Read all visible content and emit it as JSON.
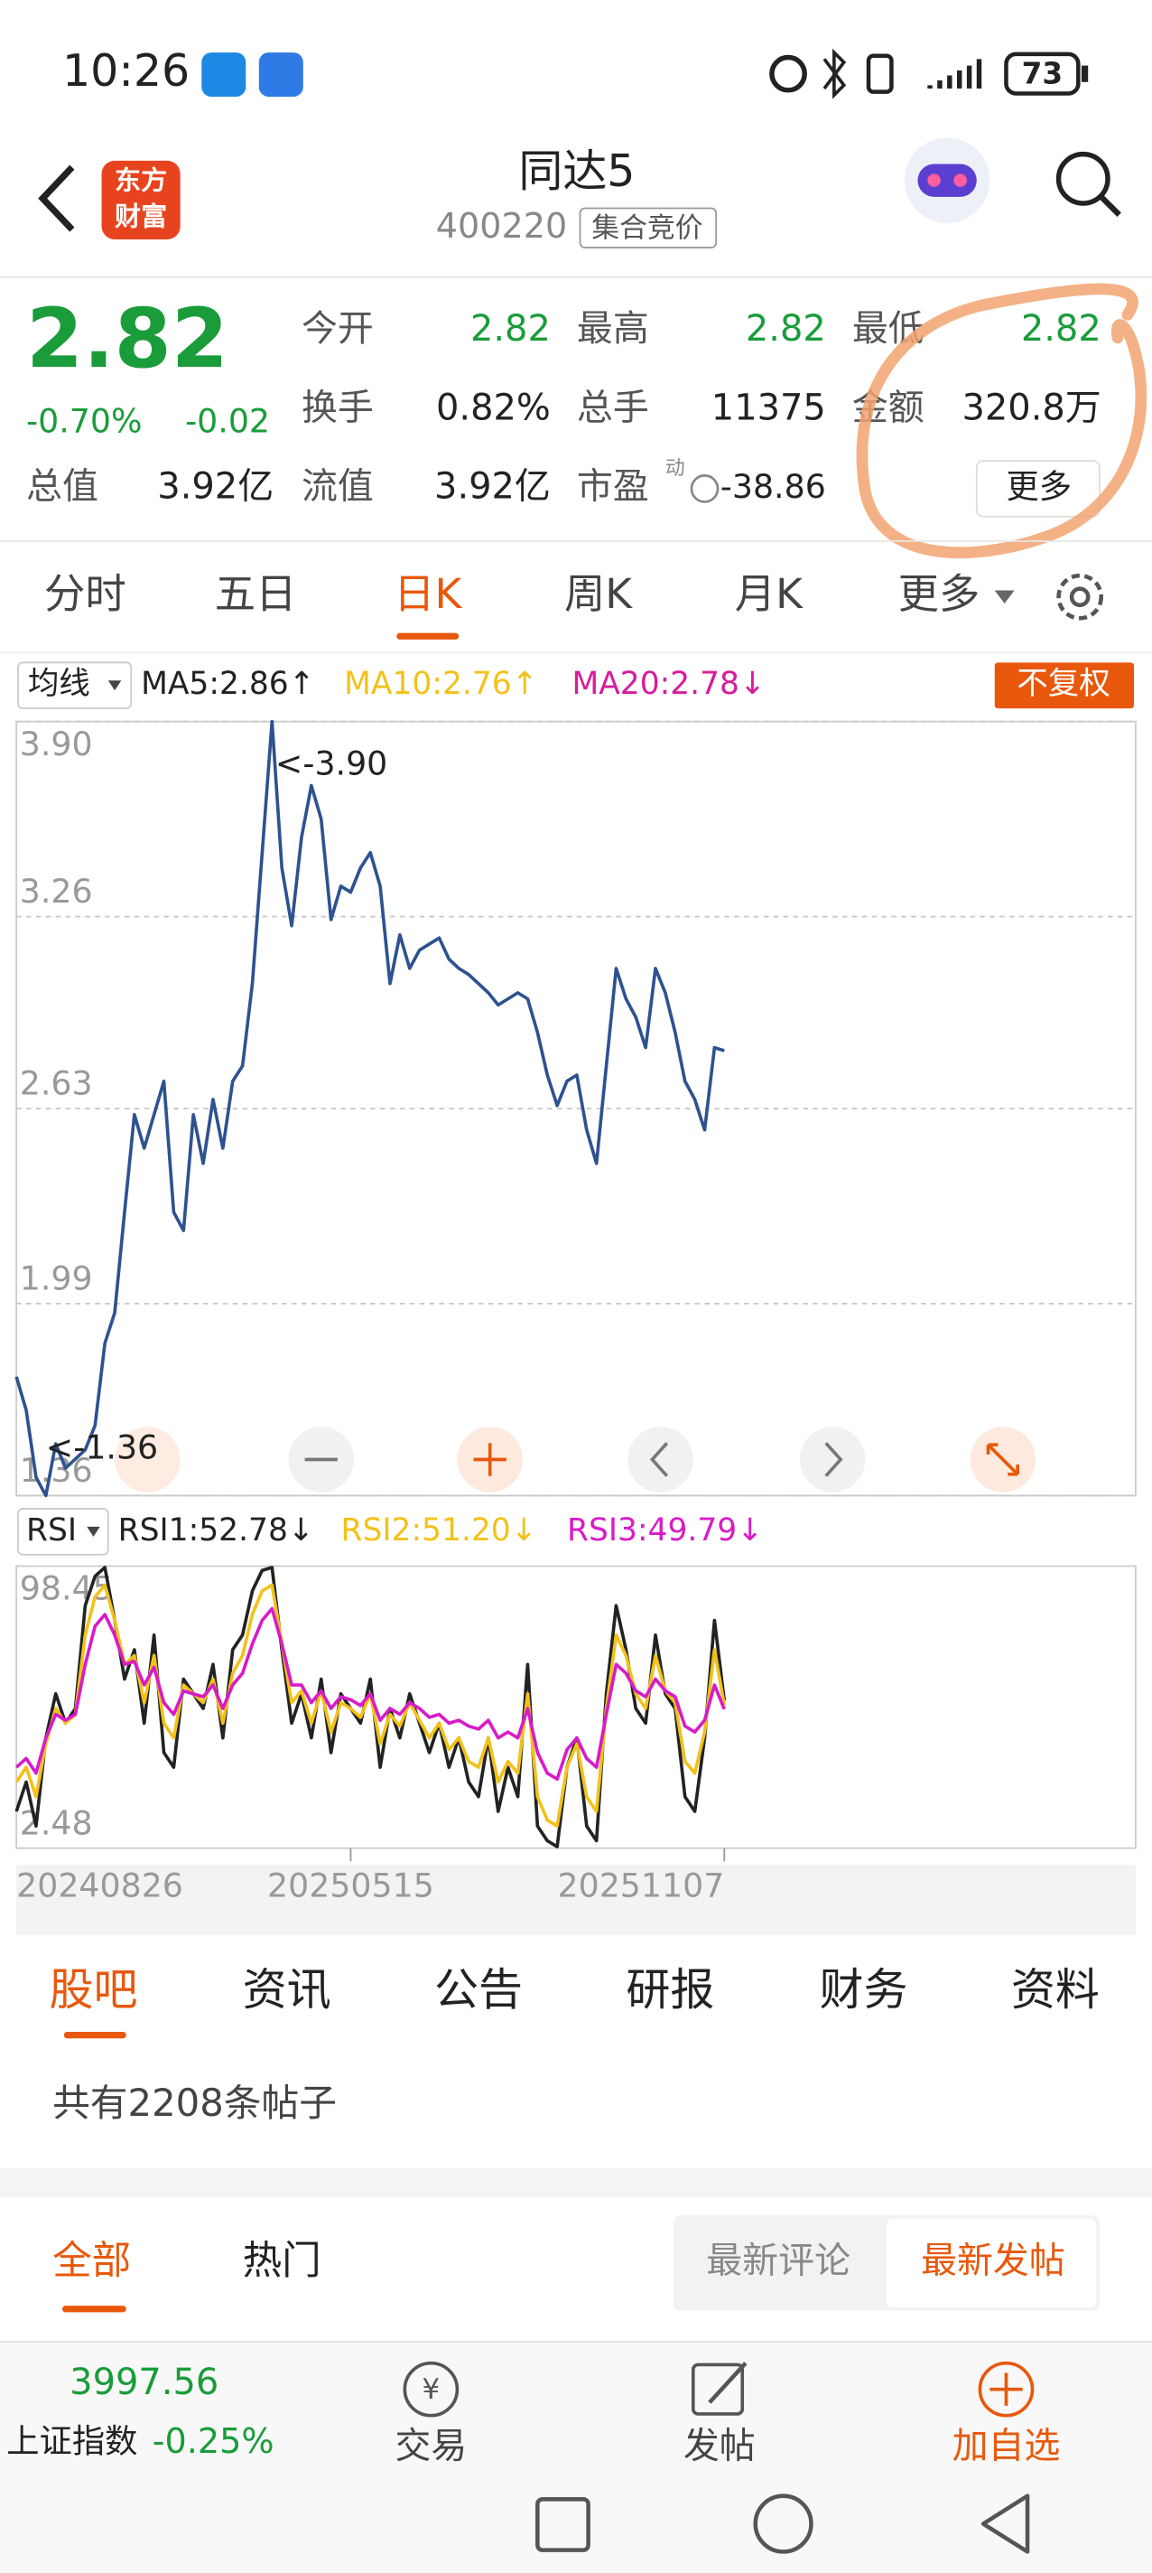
{
  "status": {
    "time": "10:26",
    "battery": "73"
  },
  "header": {
    "logo": [
      "东方",
      "财富"
    ],
    "title": "同达5",
    "code": "400220",
    "tag": "集合竞价"
  },
  "quote": {
    "price": "2.82",
    "change_pct": "-0.70%",
    "change": "-0.02",
    "fields": [
      {
        "label": "今开",
        "value": "2.82"
      },
      {
        "label": "最高",
        "value": "2.82"
      },
      {
        "label": "最低",
        "value": "2.82"
      },
      {
        "label": "换手",
        "value": "0.82%"
      },
      {
        "label": "总手",
        "value": "11375"
      },
      {
        "label": "金额",
        "value": "320.8万"
      },
      {
        "label": "总值",
        "value": "3.92亿"
      },
      {
        "label": "流值",
        "value": "3.92亿"
      },
      {
        "label": "市盈",
        "value": "-38.86"
      }
    ],
    "pe_sup": "动",
    "more": "更多"
  },
  "tabs": [
    "分时",
    "五日",
    "日K",
    "周K",
    "月K",
    "更多"
  ],
  "chart_data": [
    {
      "type": "line",
      "indicator": "均线",
      "legend_texts": [
        "MA5:2.86↑",
        "MA10:2.76↑",
        "MA20:2.78↓"
      ],
      "adjust": "不复权",
      "annotations": [
        "<-3.90",
        "<-1.36"
      ],
      "categories": [
        null,
        null,
        null,
        null,
        null,
        null,
        null,
        null,
        null,
        null,
        null,
        null,
        null,
        null,
        null,
        null,
        null,
        null,
        null,
        null,
        null,
        null,
        null,
        null,
        null,
        null,
        null,
        null,
        null,
        null,
        null,
        null,
        null,
        null,
        null,
        null,
        null,
        null,
        null,
        null,
        null,
        null,
        null,
        null,
        null,
        null,
        null,
        null,
        null,
        null,
        null,
        null,
        null,
        null,
        null,
        null,
        null,
        null,
        null,
        null,
        null,
        null,
        null,
        null,
        null,
        null,
        null,
        null,
        null,
        null,
        null,
        null,
        null
      ],
      "series": [
        {
          "color": "#2d5290",
          "values": [
            1.75,
            1.64,
            1.42,
            1.36,
            1.53,
            1.45,
            1.48,
            1.51,
            1.59,
            1.86,
            1.96,
            2.29,
            2.61,
            2.5,
            2.61,
            2.72,
            2.29,
            2.23,
            2.61,
            2.45,
            2.66,
            2.5,
            2.72,
            2.77,
            3.04,
            3.47,
            3.9,
            3.42,
            3.23,
            3.52,
            3.69,
            3.58,
            3.25,
            3.36,
            3.34,
            3.42,
            3.47,
            3.36,
            3.04,
            3.2,
            3.09,
            3.15,
            3.17,
            3.19,
            3.12,
            3.09,
            3.07,
            3.04,
            3.01,
            2.97,
            2.99,
            3.01,
            2.99,
            2.88,
            2.74,
            2.64,
            2.72,
            2.74,
            2.56,
            2.45,
            2.77,
            3.09,
            2.99,
            2.93,
            2.83,
            3.09,
            3.01,
            2.88,
            2.72,
            2.66,
            2.56,
            2.83,
            2.82
          ]
        }
      ],
      "ylim": [
        1.36,
        3.9
      ],
      "yticks": [
        {
          "value": 3.9,
          "label": "3.90"
        },
        3.26,
        2.63,
        1.99,
        1.36
      ],
      "grid": true
    },
    {
      "type": "line",
      "indicator": "RSI",
      "categories": [
        "20240826",
        null,
        null,
        null,
        null,
        null,
        null,
        null,
        null,
        null,
        null,
        null,
        null,
        null,
        null,
        null,
        null,
        null,
        null,
        null,
        null,
        null,
        null,
        null,
        null,
        null,
        null,
        null,
        null,
        null,
        null,
        null,
        null,
        null,
        "20250515",
        null,
        null,
        null,
        null,
        null,
        null,
        null,
        null,
        null,
        null,
        null,
        null,
        null,
        null,
        null,
        null,
        null,
        null,
        null,
        null,
        null,
        null,
        null,
        null,
        null,
        null,
        null,
        null,
        null,
        null,
        null,
        null,
        null,
        null,
        null,
        null,
        null,
        "20251107"
      ],
      "series": [
        {
          "name": "RSI1:52.78↓",
          "color": "#222222",
          "values": [
            15,
            25,
            10,
            40,
            55,
            45,
            50,
            85,
            95,
            98,
            80,
            60,
            70,
            45,
            75,
            35,
            30,
            60,
            55,
            50,
            65,
            40,
            70,
            75,
            90,
            97,
            98,
            70,
            45,
            55,
            40,
            60,
            35,
            55,
            50,
            45,
            60,
            30,
            50,
            40,
            55,
            45,
            35,
            45,
            30,
            40,
            25,
            20,
            40,
            15,
            30,
            20,
            65,
            10,
            5,
            3,
            30,
            40,
            10,
            5,
            55,
            85,
            70,
            50,
            45,
            75,
            55,
            50,
            20,
            15,
            40,
            80,
            52.78
          ]
        },
        {
          "name": "RSI2:51.20↓",
          "color": "#f2c21a",
          "values": [
            25,
            30,
            20,
            38,
            50,
            45,
            48,
            75,
            88,
            92,
            80,
            65,
            68,
            52,
            68,
            45,
            40,
            58,
            55,
            52,
            60,
            45,
            62,
            68,
            82,
            90,
            92,
            72,
            52,
            56,
            45,
            56,
            42,
            52,
            50,
            47,
            55,
            38,
            48,
            44,
            52,
            46,
            40,
            45,
            36,
            40,
            32,
            30,
            40,
            25,
            32,
            28,
            55,
            20,
            12,
            10,
            30,
            38,
            20,
            15,
            50,
            75,
            68,
            55,
            50,
            68,
            56,
            52,
            32,
            28,
            42,
            70,
            51.2
          ]
        },
        {
          "name": "RSI3:49.79↓",
          "color": "#d81bc8",
          "values": [
            30,
            33,
            28,
            40,
            48,
            46,
            48,
            65,
            78,
            82,
            75,
            65,
            66,
            58,
            64,
            52,
            48,
            56,
            55,
            54,
            58,
            50,
            58,
            62,
            72,
            80,
            84,
            72,
            58,
            58,
            52,
            56,
            50,
            54,
            53,
            51,
            55,
            46,
            50,
            48,
            52,
            50,
            47,
            48,
            45,
            46,
            44,
            43,
            46,
            40,
            42,
            40,
            50,
            35,
            28,
            26,
            36,
            40,
            33,
            30,
            48,
            65,
            62,
            56,
            54,
            60,
            56,
            54,
            44,
            42,
            46,
            58,
            49.79
          ]
        }
      ],
      "ylim": [
        2.48,
        98.45
      ],
      "yticks": [
        98.45,
        2.48
      ]
    }
  ],
  "section_tabs": [
    "股吧",
    "资讯",
    "公告",
    "研报",
    "财务",
    "资料"
  ],
  "post_count": "共有2208条帖子",
  "filters": [
    "全部",
    "热门"
  ],
  "sort": [
    "最新评论",
    "最新发帖"
  ],
  "bottom": {
    "index_value": "3997.56",
    "index_name": "上证指数",
    "index_change": "-0.25%",
    "actions": [
      "交易",
      "发帖",
      "加自选"
    ]
  }
}
